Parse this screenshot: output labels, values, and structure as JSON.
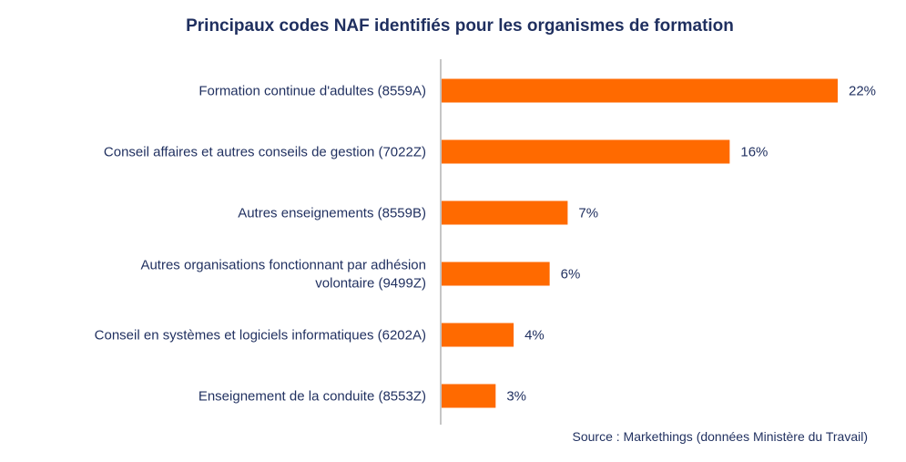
{
  "colors": {
    "bar": "#ff6a00",
    "text": "#1f2f5f",
    "axis": "#8c8c8c"
  },
  "chart_data": {
    "type": "bar",
    "orientation": "horizontal",
    "title": "Principaux codes NAF identifiés pour les organismes de formation",
    "categories": [
      "Formation continue d'adultes (8559A)",
      "Conseil affaires et autres conseils de gestion (7022Z)",
      "Autres enseignements (8559B)",
      "Autres organisations fonctionnant par adhésion volontaire (9499Z)",
      "Conseil en systèmes et logiciels informatiques (6202A)",
      "Enseignement de la conduite (8553Z)"
    ],
    "values": [
      22,
      16,
      7,
      6,
      4,
      3
    ],
    "data_labels": [
      "22%",
      "16%",
      "7%",
      "6%",
      "4%",
      "3%"
    ],
    "unit": "%",
    "xlim": [
      0,
      22
    ],
    "grid": false,
    "legend": "none",
    "source": "Source : Markethings (données Ministère du Travail)"
  }
}
